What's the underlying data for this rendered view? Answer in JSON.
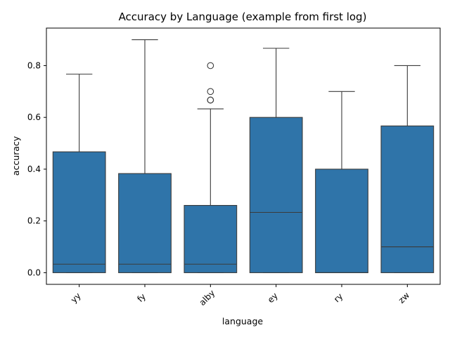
{
  "chart_data": {
    "type": "box",
    "title": "Accuracy by Language (example from first log)",
    "xlabel": "language",
    "ylabel": "accuracy",
    "ylim": [
      -0.045,
      0.945
    ],
    "yticks": [
      0.0,
      0.2,
      0.4,
      0.6,
      0.8
    ],
    "ytick_labels": [
      "0.0",
      "0.2",
      "0.4",
      "0.6",
      "0.8"
    ],
    "categories": [
      "yy",
      "fy",
      "alby",
      "ey",
      "ry",
      "zw"
    ],
    "box_color": "#2f74a9",
    "line_color": "#3b3b3b",
    "grid": false,
    "boxes": [
      {
        "category": "yy",
        "whisker_low": 0.0,
        "q1": 0.0,
        "median": 0.033,
        "q3": 0.467,
        "whisker_high": 0.767,
        "outliers": []
      },
      {
        "category": "fy",
        "whisker_low": 0.0,
        "q1": 0.0,
        "median": 0.033,
        "q3": 0.383,
        "whisker_high": 0.9,
        "outliers": []
      },
      {
        "category": "alby",
        "whisker_low": 0.0,
        "q1": 0.0,
        "median": 0.033,
        "q3": 0.26,
        "whisker_high": 0.633,
        "outliers": [
          0.667,
          0.667,
          0.7,
          0.8
        ]
      },
      {
        "category": "ey",
        "whisker_low": 0.0,
        "q1": 0.0,
        "median": 0.233,
        "q3": 0.6,
        "whisker_high": 0.867,
        "outliers": []
      },
      {
        "category": "ry",
        "whisker_low": 0.0,
        "q1": 0.0,
        "median": 0.0,
        "q3": 0.4,
        "whisker_high": 0.7,
        "outliers": []
      },
      {
        "category": "zw",
        "whisker_low": 0.0,
        "q1": 0.0,
        "median": 0.1,
        "q3": 0.567,
        "whisker_high": 0.8,
        "outliers": []
      }
    ]
  }
}
